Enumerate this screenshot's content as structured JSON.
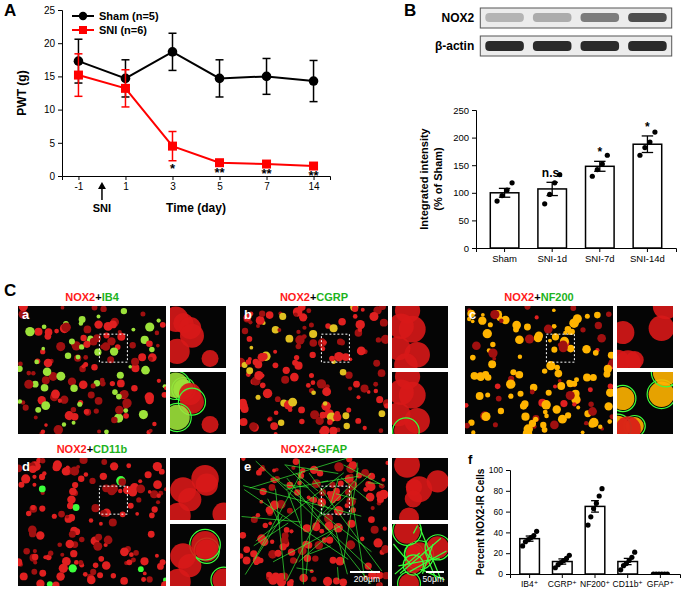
{
  "figure": {
    "panel_labels": [
      "A",
      "B",
      "C"
    ],
    "blot_labels": [
      "NOX2",
      "β-actin"
    ],
    "micrographs": [
      {
        "letter": "a",
        "label_parts": [
          "NOX2",
          "+",
          "IB4"
        ]
      },
      {
        "letter": "b",
        "label_parts": [
          "NOX2",
          "+",
          "CGRP"
        ]
      },
      {
        "letter": "c",
        "label_parts": [
          "NOX2",
          "+",
          "NF200"
        ]
      },
      {
        "letter": "d",
        "label_parts": [
          "NOX2",
          "+",
          "CD11b"
        ]
      },
      {
        "letter": "e",
        "label_parts": [
          "NOX2",
          "+",
          "GFAP"
        ]
      }
    ],
    "scale_bars": [
      "200μm",
      "50μm"
    ]
  },
  "chart_data": [
    {
      "type": "line",
      "categories": [
        "-1",
        "1",
        "3",
        "5",
        "7",
        "14"
      ],
      "x_label": "Time (day)",
      "y_label": "PWT (g)",
      "ylim": [
        0,
        25
      ],
      "yticks": [
        0,
        5,
        10,
        15,
        20,
        25
      ],
      "grid": false,
      "legend": "upper left",
      "event": "SNI",
      "series": [
        {
          "name": "Sham (n=5)",
          "color": "#000000",
          "marker": "circle",
          "line_style": "solid",
          "values": [
            17.3,
            14.7,
            18.7,
            14.7,
            15.0,
            14.3
          ],
          "errors": [
            3.3,
            2.8,
            2.8,
            2.8,
            2.7,
            3.1
          ]
        },
        {
          "name": "SNI (n=6)",
          "color": "#ff0000",
          "marker": "square",
          "line_style": "solid",
          "values": [
            15.2,
            13.2,
            4.5,
            2.0,
            1.8,
            1.5
          ],
          "errors": [
            3.2,
            2.8,
            2.2,
            0.3,
            0.3,
            0.3
          ]
        }
      ],
      "annotations": [
        {
          "x": "3",
          "text": "*"
        },
        {
          "x": "5",
          "text": "**"
        },
        {
          "x": "7",
          "text": "**"
        },
        {
          "x": "14",
          "text": "**"
        }
      ]
    },
    {
      "type": "bar",
      "categories": [
        "Sham",
        "SNI-1d",
        "SNI-7d",
        "SNI-14d"
      ],
      "values": [
        100,
        107,
        148,
        188
      ],
      "errors": [
        8,
        12,
        9,
        15
      ],
      "points": [
        [
          85,
          95,
          105,
          118
        ],
        [
          80,
          97,
          118,
          133
        ],
        [
          130,
          142,
          152,
          168
        ],
        [
          168,
          182,
          192,
          210
        ]
      ],
      "color": "#ffffff",
      "y_label": [
        "Integrated intensity",
        "(% of Sham)"
      ],
      "ylim": [
        0,
        250
      ],
      "yticks": [
        0,
        50,
        100,
        150,
        200,
        250
      ],
      "grid": false,
      "annotations": [
        {
          "x": "SNI-1d",
          "text": "n.s."
        },
        {
          "x": "SNI-7d",
          "text": "*"
        },
        {
          "x": "SNI-14d",
          "text": "*"
        }
      ]
    },
    {
      "type": "bar",
      "panel_label": "f",
      "categories": [
        "IB4⁺",
        "CGRP⁺",
        "NF200⁺",
        "CD11b⁺",
        "GFAP⁺"
      ],
      "values": [
        34,
        12,
        65,
        12,
        0
      ],
      "errors": [
        2.5,
        2.5,
        5.5,
        3,
        0
      ],
      "points": [
        [
          27,
          31,
          33,
          35,
          37,
          41
        ],
        [
          6,
          9,
          11,
          13,
          15,
          18
        ],
        [
          47,
          55,
          63,
          68,
          75,
          82
        ],
        [
          4,
          8,
          10,
          13,
          16,
          21
        ],
        [
          0,
          0,
          0,
          0,
          0,
          0
        ]
      ],
      "color": "#ffffff",
      "y_label": "Percent NOX2-IR Cells",
      "ylim": [
        0,
        100
      ],
      "yticks": [
        0,
        20,
        40,
        60,
        80,
        100
      ],
      "grid": false
    }
  ]
}
